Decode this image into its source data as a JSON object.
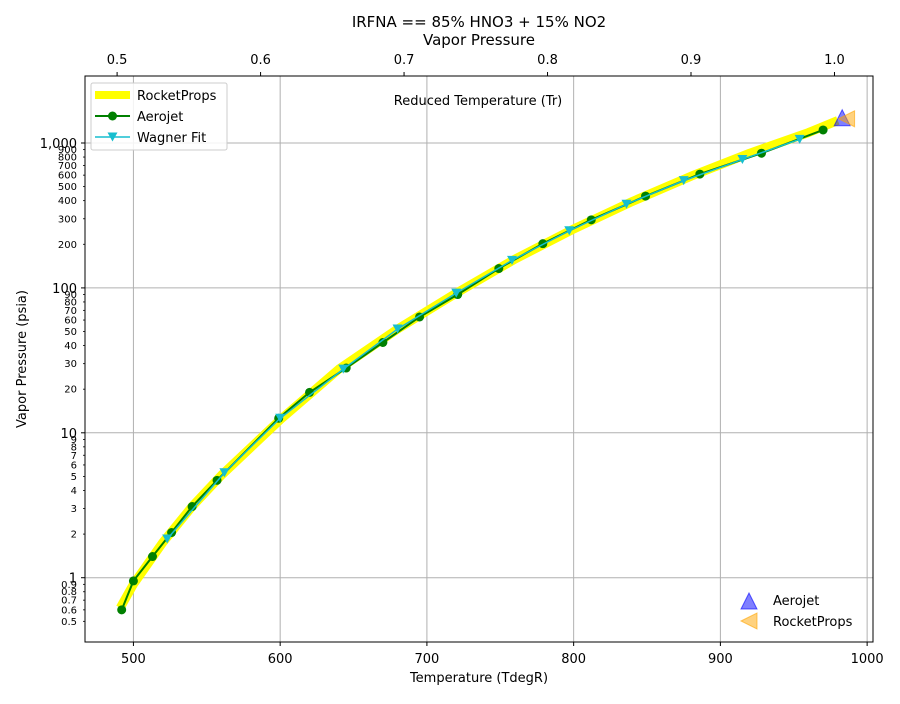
{
  "chart_data": {
    "type": "line",
    "title_line1": "IRFNA == 85% HNO3 + 15% NO2",
    "title_line2": "Vapor Pressure",
    "xlabel": "Temperature (TdegR)",
    "ylabel": "Vapor Pressure (psia)",
    "x2label": "Reduced Temperature (Tr)",
    "xlim": [
      467,
      1004
    ],
    "ylim": [
      0.36,
      2900
    ],
    "yscale": "log",
    "x_ticks": [
      500,
      600,
      700,
      800,
      900,
      1000
    ],
    "x_tick_labels": [
      "500",
      "600",
      "700",
      "800",
      "900",
      "1000"
    ],
    "x2_ticks": [
      0.5,
      0.6,
      0.7,
      0.8,
      0.9,
      1.0
    ],
    "x2_tick_labels": [
      "0.5",
      "0.6",
      "0.7",
      "0.8",
      "0.9",
      "1.0"
    ],
    "tr_to_tdegr": 977.75,
    "y_major_ticks": [
      1,
      10,
      100,
      1000
    ],
    "y_major_labels": [
      "1",
      "10",
      "100",
      "1,000"
    ],
    "y_minor_ticks": [
      0.5,
      0.6,
      0.7,
      0.8,
      0.9,
      2,
      3,
      4,
      5,
      6,
      7,
      8,
      9,
      20,
      30,
      40,
      50,
      60,
      70,
      80,
      90,
      200,
      300,
      400,
      500,
      600,
      700,
      800,
      900
    ],
    "y_minor_labels": [
      "0.5",
      "0.6",
      "0.7",
      "0.8",
      "0.9",
      "2",
      "3",
      "4",
      "5",
      "6",
      "7",
      "8",
      "9",
      "20",
      "30",
      "40",
      "50",
      "60",
      "70",
      "80",
      "90",
      "200",
      "300",
      "400",
      "500",
      "600",
      "700",
      "800",
      "900"
    ],
    "grid": true,
    "legend_upper": {
      "placement": "top-left",
      "entries": [
        "RocketProps",
        "Aerojet",
        "Wagner Fit"
      ]
    },
    "legend_lower": {
      "placement": "bottom-right",
      "entries": [
        "Aerojet",
        "RocketProps"
      ]
    },
    "series": [
      {
        "name": "RocketProps",
        "style": "thick-line",
        "color": "#ffff00",
        "x": [
          491,
          500,
          520,
          540,
          560,
          600,
          640,
          680,
          720,
          760,
          800,
          840,
          880,
          920,
          960,
          980
        ],
        "y": [
          0.62,
          0.9,
          1.75,
          3.1,
          5.1,
          12.3,
          27.5,
          52,
          92,
          158,
          255,
          395,
          590,
          850,
          1180,
          1430
        ]
      },
      {
        "name": "Aerojet",
        "style": "line-markers",
        "color": "#008000",
        "x": [
          492,
          500,
          513,
          526,
          540,
          557,
          599,
          620,
          645,
          670,
          695,
          721,
          749,
          779,
          812,
          849,
          886,
          928,
          970
        ],
        "y": [
          0.6,
          0.95,
          1.4,
          2.05,
          3.1,
          4.7,
          12.6,
          19,
          28,
          42,
          63,
          90,
          136,
          202,
          295,
          430,
          610,
          850,
          1230
        ]
      },
      {
        "name": "Wagner Fit",
        "style": "line-triangle-down",
        "color": "#17becf",
        "x": [
          523,
          562,
          600,
          643,
          680,
          720,
          758,
          797,
          836,
          875,
          915,
          954
        ],
        "y": [
          1.85,
          5.3,
          12.6,
          27.5,
          52,
          92,
          155,
          248,
          378,
          550,
          770,
          1060
        ]
      },
      {
        "name": "Aerojet",
        "style": "critical-point-triangle-up",
        "color": "#0000ff",
        "x": [
          983
        ],
        "y": [
          1470
        ]
      },
      {
        "name": "RocketProps",
        "style": "critical-point-triangle-left",
        "color": "#ffa500",
        "x": [
          986
        ],
        "y": [
          1470
        ]
      }
    ]
  }
}
